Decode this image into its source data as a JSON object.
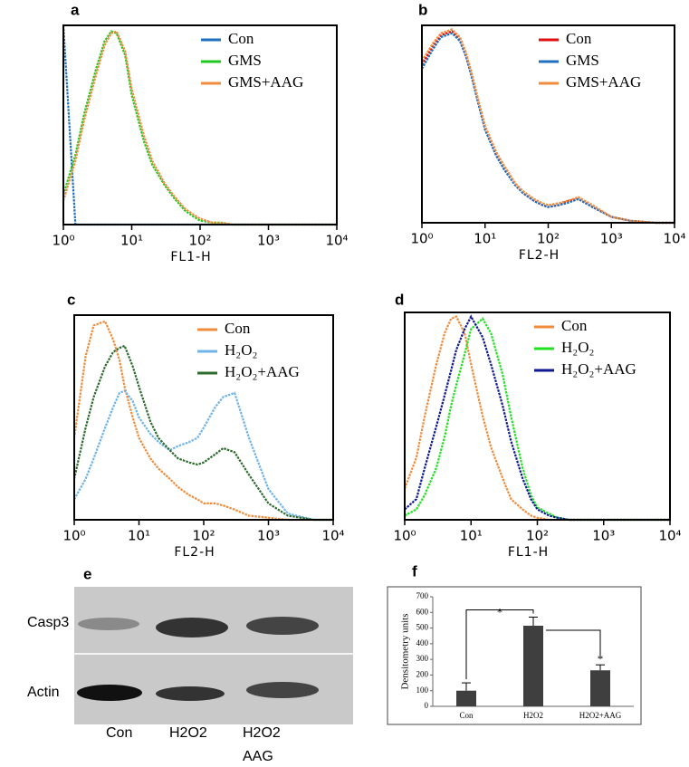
{
  "chart_data": [
    {
      "panel": "a",
      "type": "line",
      "xscale": "log",
      "x_label": "FL1-H",
      "x": [
        1,
        1.5,
        2,
        3,
        4,
        5,
        6,
        8,
        10,
        15,
        20,
        30,
        40,
        60,
        80,
        100,
        150,
        200,
        300,
        500,
        1000,
        2000,
        5000,
        10000
      ],
      "xlim": [
        1,
        10000
      ],
      "ylim": [
        0,
        100
      ],
      "xticks": [
        {
          "value": 1,
          "label": "10⁰"
        },
        {
          "value": 10,
          "label": "10¹"
        },
        {
          "value": 100,
          "label": "10²"
        },
        {
          "value": 1000,
          "label": "10³"
        },
        {
          "value": 10000,
          "label": "10⁴"
        }
      ],
      "legend": "upper right",
      "series": [
        {
          "name": "Con",
          "color": "#1f6fc0",
          "values": [
            100,
            0,
            0,
            0,
            0,
            0,
            0,
            0,
            0,
            0,
            0,
            0,
            0,
            0,
            0,
            0,
            0,
            0,
            0,
            0,
            0,
            0,
            0,
            0
          ]
        },
        {
          "name": "GMS",
          "color": "#22c822",
          "values": [
            15,
            35,
            55,
            78,
            92,
            97,
            96,
            85,
            65,
            42,
            30,
            20,
            14,
            7,
            4,
            2,
            1,
            1,
            0,
            0,
            0,
            0,
            0,
            0
          ]
        },
        {
          "name": "GMS+AAG",
          "color": "#f08c3c",
          "values": [
            12,
            32,
            52,
            75,
            90,
            96,
            97,
            87,
            68,
            45,
            32,
            21,
            15,
            8,
            5,
            3,
            1,
            1,
            0,
            0,
            0,
            0,
            0,
            0
          ]
        }
      ]
    },
    {
      "panel": "b",
      "type": "line",
      "xscale": "log",
      "x_label": "FL2-H",
      "x": [
        1,
        1.5,
        2,
        3,
        4,
        5,
        6,
        8,
        10,
        15,
        20,
        30,
        40,
        60,
        80,
        100,
        150,
        200,
        300,
        500,
        1000,
        2000,
        5000,
        10000
      ],
      "xlim": [
        1,
        10000
      ],
      "ylim": [
        0,
        100
      ],
      "xticks": [
        {
          "value": 1,
          "label": "10⁰"
        },
        {
          "value": 10,
          "label": "10¹"
        },
        {
          "value": 100,
          "label": "10²"
        },
        {
          "value": 1000,
          "label": "10³"
        },
        {
          "value": 10000,
          "label": "10⁴"
        }
      ],
      "legend": "upper right",
      "series": [
        {
          "name": "Con",
          "color": "#e01010",
          "values": [
            80,
            90,
            95,
            97,
            93,
            85,
            76,
            60,
            48,
            35,
            28,
            20,
            15,
            11,
            9,
            8,
            9,
            11,
            12,
            8,
            3,
            1,
            0,
            0
          ]
        },
        {
          "name": "GMS",
          "color": "#1f6fc0",
          "values": [
            78,
            88,
            94,
            96,
            92,
            84,
            75,
            59,
            47,
            34,
            27,
            19,
            15,
            11,
            9,
            8,
            9,
            10,
            12,
            8,
            3,
            1,
            0,
            0
          ]
        },
        {
          "name": "GMS+AAG",
          "color": "#f08c3c",
          "values": [
            82,
            91,
            96,
            98,
            94,
            86,
            77,
            61,
            49,
            36,
            29,
            20,
            16,
            12,
            10,
            9,
            10,
            11,
            13,
            9,
            3,
            1,
            0,
            0
          ]
        }
      ]
    },
    {
      "panel": "c",
      "type": "line",
      "xscale": "log",
      "x_label": "FL2-H",
      "x": [
        1,
        1.5,
        2,
        3,
        4,
        5,
        6,
        8,
        10,
        15,
        20,
        30,
        40,
        60,
        80,
        100,
        150,
        200,
        300,
        500,
        1000,
        2000,
        5000,
        10000
      ],
      "xlim": [
        1,
        10000
      ],
      "ylim": [
        0,
        100
      ],
      "xticks": [
        {
          "value": 1,
          "label": "10⁰"
        },
        {
          "value": 10,
          "label": "10¹"
        },
        {
          "value": 100,
          "label": "10²"
        },
        {
          "value": 1000,
          "label": "10³"
        },
        {
          "value": 10000,
          "label": "10⁴"
        }
      ],
      "legend": "upper right",
      "series": [
        {
          "name": "Con",
          "color": "#f08c3c",
          "values": [
            40,
            80,
            95,
            97,
            88,
            78,
            65,
            50,
            40,
            30,
            25,
            20,
            16,
            12,
            10,
            8,
            8,
            7,
            5,
            2,
            1,
            0,
            0,
            0
          ]
        },
        {
          "name": "H₂O₂",
          "color": "#6fb3e8",
          "values": [
            10,
            20,
            30,
            45,
            55,
            62,
            63,
            58,
            50,
            42,
            38,
            34,
            36,
            38,
            40,
            45,
            55,
            60,
            62,
            40,
            15,
            3,
            0,
            0
          ]
        },
        {
          "name": "H₂O₂+AAG",
          "color": "#2e6b2e",
          "values": [
            20,
            45,
            60,
            75,
            82,
            84,
            85,
            75,
            65,
            48,
            40,
            34,
            30,
            28,
            27,
            28,
            32,
            35,
            33,
            22,
            8,
            2,
            0,
            0
          ]
        }
      ]
    },
    {
      "panel": "d",
      "type": "line",
      "xscale": "log",
      "x_label": "FL1-H",
      "x": [
        1,
        1.5,
        2,
        3,
        4,
        5,
        6,
        8,
        10,
        15,
        20,
        30,
        40,
        60,
        80,
        100,
        150,
        200,
        300,
        500,
        1000,
        2000,
        5000,
        10000
      ],
      "xlim": [
        1,
        10000
      ],
      "ylim": [
        0,
        100
      ],
      "xticks": [
        {
          "value": 1,
          "label": "10⁰"
        },
        {
          "value": 10,
          "label": "10¹"
        },
        {
          "value": 100,
          "label": "10²"
        },
        {
          "value": 1000,
          "label": "10³"
        },
        {
          "value": 10000,
          "label": "10⁴"
        }
      ],
      "legend": "upper right",
      "series": [
        {
          "name": "Con",
          "color": "#f08c3c",
          "values": [
            15,
            30,
            50,
            75,
            90,
            97,
            98,
            90,
            75,
            50,
            35,
            20,
            10,
            5,
            2,
            1,
            0,
            0,
            0,
            0,
            0,
            0,
            0,
            0
          ]
        },
        {
          "name": "H₂O₂",
          "color": "#22e022",
          "values": [
            2,
            5,
            12,
            25,
            40,
            55,
            65,
            80,
            92,
            97,
            90,
            70,
            50,
            25,
            12,
            6,
            3,
            1,
            0,
            0,
            0,
            0,
            0,
            0
          ]
        },
        {
          "name": "H₂O₂+AAG",
          "color": "#101890",
          "values": [
            5,
            10,
            25,
            45,
            60,
            72,
            82,
            92,
            98,
            88,
            75,
            55,
            38,
            20,
            10,
            5,
            2,
            1,
            0,
            0,
            0,
            0,
            0,
            0
          ]
        }
      ]
    },
    {
      "panel": "f",
      "type": "bar",
      "y_label": "Densitometry units",
      "categories": [
        "Con",
        "H2O2",
        "H2O2+AAG"
      ],
      "values": [
        100,
        515,
        230
      ],
      "errors": [
        50,
        55,
        35
      ],
      "color": "#3f3f3f",
      "ylim": [
        0,
        700
      ],
      "yticks": [
        0,
        100,
        200,
        300,
        400,
        500,
        600,
        700
      ],
      "annotations": [
        "*",
        "*"
      ]
    }
  ],
  "blot": {
    "panel": "e",
    "rows": [
      "Casp3",
      "Actin"
    ],
    "lanes": [
      [
        "Con"
      ],
      [
        "H2O2"
      ],
      [
        "H2O2",
        "AAG"
      ]
    ]
  }
}
